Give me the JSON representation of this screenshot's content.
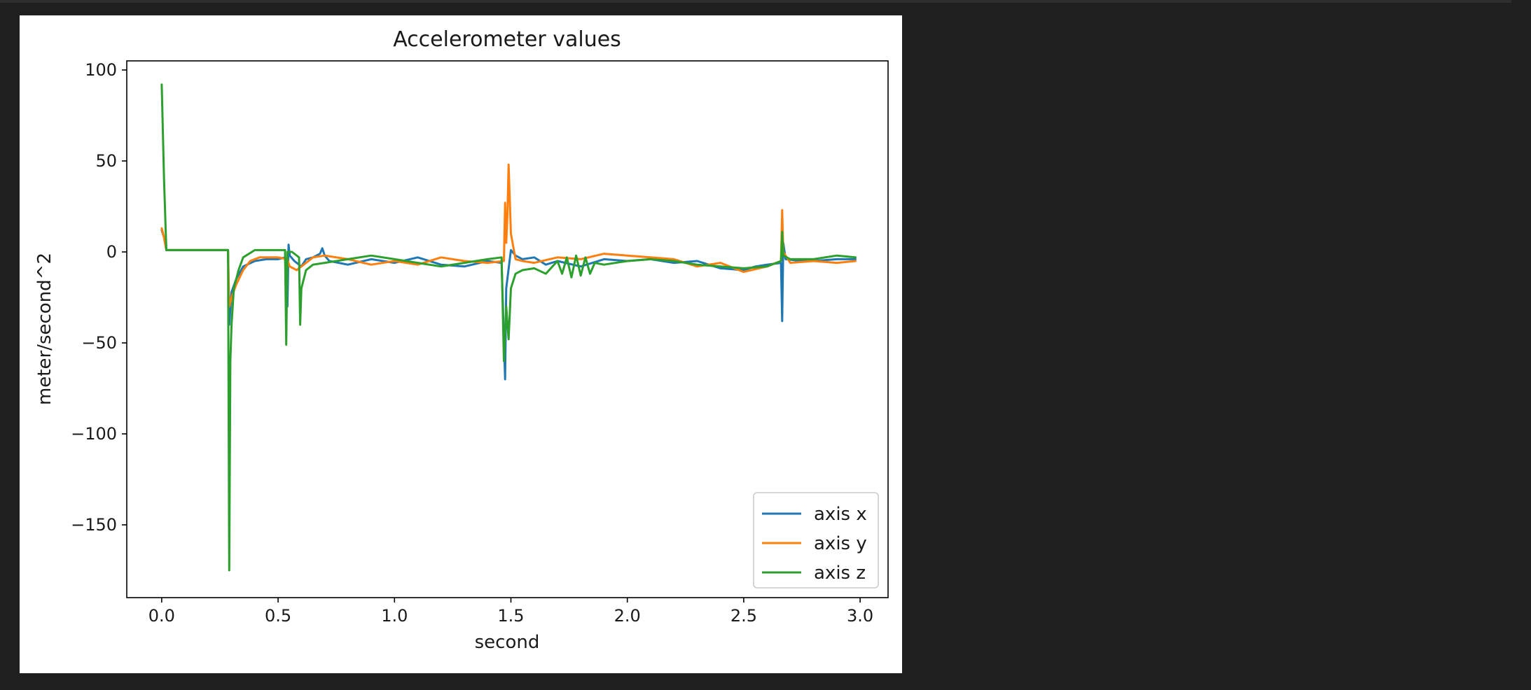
{
  "chart_data": {
    "type": "line",
    "title": "Accelerometer values",
    "xlabel": "second",
    "ylabel": "meter/second^2",
    "xlim": [
      -0.15,
      3.12
    ],
    "ylim": [
      -190,
      105
    ],
    "xticks": [
      0.0,
      0.5,
      1.0,
      1.5,
      2.0,
      2.5,
      3.0
    ],
    "xtick_labels": [
      "0.0",
      "0.5",
      "1.0",
      "1.5",
      "2.0",
      "2.5",
      "3.0"
    ],
    "yticks": [
      100,
      50,
      0,
      -50,
      -100,
      -150
    ],
    "ytick_labels": [
      "100",
      "50",
      "0",
      "−50",
      "−100",
      "−150"
    ],
    "grid": false,
    "legend": "lower-right",
    "series": [
      {
        "name": "axis x",
        "color": "#1f77b4",
        "points": [
          [
            0.0,
            12
          ],
          [
            0.01,
            8
          ],
          [
            0.02,
            1
          ],
          [
            0.1,
            1
          ],
          [
            0.2,
            1
          ],
          [
            0.285,
            1
          ],
          [
            0.29,
            -40
          ],
          [
            0.3,
            -22
          ],
          [
            0.32,
            -15
          ],
          [
            0.35,
            -8
          ],
          [
            0.4,
            -5
          ],
          [
            0.45,
            -4
          ],
          [
            0.5,
            -4
          ],
          [
            0.53,
            -3
          ],
          [
            0.54,
            -30
          ],
          [
            0.545,
            4
          ],
          [
            0.55,
            -2
          ],
          [
            0.57,
            -5
          ],
          [
            0.6,
            -8
          ],
          [
            0.62,
            -4
          ],
          [
            0.65,
            -3
          ],
          [
            0.68,
            -1
          ],
          [
            0.69,
            2
          ],
          [
            0.7,
            -2
          ],
          [
            0.72,
            -5
          ],
          [
            0.8,
            -7
          ],
          [
            0.9,
            -4
          ],
          [
            1.0,
            -6
          ],
          [
            1.1,
            -3
          ],
          [
            1.2,
            -7
          ],
          [
            1.3,
            -8
          ],
          [
            1.4,
            -5
          ],
          [
            1.46,
            -6
          ],
          [
            1.475,
            -70
          ],
          [
            1.48,
            -20
          ],
          [
            1.5,
            1
          ],
          [
            1.52,
            -2
          ],
          [
            1.55,
            -4
          ],
          [
            1.6,
            -3
          ],
          [
            1.65,
            -7
          ],
          [
            1.7,
            -5
          ],
          [
            1.8,
            -8
          ],
          [
            1.9,
            -4
          ],
          [
            2.0,
            -5
          ],
          [
            2.1,
            -4
          ],
          [
            2.2,
            -6
          ],
          [
            2.3,
            -5
          ],
          [
            2.4,
            -9
          ],
          [
            2.5,
            -10
          ],
          [
            2.55,
            -8
          ],
          [
            2.6,
            -7
          ],
          [
            2.66,
            -6
          ],
          [
            2.665,
            -38
          ],
          [
            2.67,
            5
          ],
          [
            2.68,
            -4
          ],
          [
            2.75,
            -5
          ],
          [
            2.8,
            -5
          ],
          [
            2.9,
            -4
          ],
          [
            2.98,
            -4
          ]
        ]
      },
      {
        "name": "axis y",
        "color": "#ff7f0e",
        "points": [
          [
            0.0,
            13
          ],
          [
            0.01,
            8
          ],
          [
            0.02,
            1
          ],
          [
            0.1,
            1
          ],
          [
            0.2,
            1
          ],
          [
            0.285,
            1
          ],
          [
            0.29,
            -30
          ],
          [
            0.3,
            -25
          ],
          [
            0.32,
            -18
          ],
          [
            0.35,
            -10
          ],
          [
            0.38,
            -5
          ],
          [
            0.42,
            -3
          ],
          [
            0.5,
            -3
          ],
          [
            0.54,
            -4
          ],
          [
            0.55,
            -8
          ],
          [
            0.58,
            -10
          ],
          [
            0.6,
            -8
          ],
          [
            0.65,
            -3
          ],
          [
            0.7,
            -2
          ],
          [
            0.8,
            -4
          ],
          [
            0.9,
            -7
          ],
          [
            1.0,
            -5
          ],
          [
            1.1,
            -7
          ],
          [
            1.2,
            -3
          ],
          [
            1.3,
            -5
          ],
          [
            1.4,
            -6
          ],
          [
            1.47,
            -5
          ],
          [
            1.475,
            27
          ],
          [
            1.48,
            5
          ],
          [
            1.485,
            20
          ],
          [
            1.49,
            48
          ],
          [
            1.5,
            10
          ],
          [
            1.52,
            -4
          ],
          [
            1.55,
            -5
          ],
          [
            1.6,
            -6
          ],
          [
            1.7,
            -3
          ],
          [
            1.8,
            -4
          ],
          [
            1.9,
            -1
          ],
          [
            2.0,
            -2
          ],
          [
            2.1,
            -3
          ],
          [
            2.2,
            -4
          ],
          [
            2.3,
            -8
          ],
          [
            2.4,
            -6
          ],
          [
            2.5,
            -11
          ],
          [
            2.6,
            -8
          ],
          [
            2.66,
            -5
          ],
          [
            2.665,
            23
          ],
          [
            2.67,
            0
          ],
          [
            2.7,
            -6
          ],
          [
            2.8,
            -5
          ],
          [
            2.9,
            -6
          ],
          [
            2.98,
            -5
          ]
        ]
      },
      {
        "name": "axis z",
        "color": "#2ca02c",
        "points": [
          [
            0.0,
            92
          ],
          [
            0.01,
            40
          ],
          [
            0.02,
            1
          ],
          [
            0.1,
            1
          ],
          [
            0.2,
            1
          ],
          [
            0.285,
            1
          ],
          [
            0.29,
            -175
          ],
          [
            0.295,
            -60
          ],
          [
            0.3,
            -40
          ],
          [
            0.31,
            -20
          ],
          [
            0.33,
            -10
          ],
          [
            0.35,
            -3
          ],
          [
            0.4,
            1
          ],
          [
            0.5,
            1
          ],
          [
            0.53,
            1
          ],
          [
            0.535,
            -51
          ],
          [
            0.54,
            0
          ],
          [
            0.56,
            0
          ],
          [
            0.59,
            -3
          ],
          [
            0.595,
            -40
          ],
          [
            0.6,
            -20
          ],
          [
            0.62,
            -10
          ],
          [
            0.65,
            -7
          ],
          [
            0.7,
            -6
          ],
          [
            0.8,
            -4
          ],
          [
            0.9,
            -2
          ],
          [
            1.0,
            -4
          ],
          [
            1.1,
            -6
          ],
          [
            1.2,
            -8
          ],
          [
            1.3,
            -6
          ],
          [
            1.4,
            -4
          ],
          [
            1.46,
            -3
          ],
          [
            1.47,
            -60
          ],
          [
            1.48,
            -30
          ],
          [
            1.49,
            -48
          ],
          [
            1.5,
            -20
          ],
          [
            1.52,
            -12
          ],
          [
            1.55,
            -10
          ],
          [
            1.6,
            -9
          ],
          [
            1.65,
            -12
          ],
          [
            1.7,
            -5
          ],
          [
            1.72,
            -12
          ],
          [
            1.74,
            -3
          ],
          [
            1.76,
            -14
          ],
          [
            1.78,
            -2
          ],
          [
            1.8,
            -13
          ],
          [
            1.82,
            -3
          ],
          [
            1.84,
            -12
          ],
          [
            1.86,
            -6
          ],
          [
            1.9,
            -7
          ],
          [
            2.0,
            -5
          ],
          [
            2.1,
            -4
          ],
          [
            2.2,
            -5
          ],
          [
            2.3,
            -7
          ],
          [
            2.4,
            -8
          ],
          [
            2.5,
            -9
          ],
          [
            2.6,
            -8
          ],
          [
            2.66,
            -5
          ],
          [
            2.665,
            11
          ],
          [
            2.67,
            -2
          ],
          [
            2.7,
            -4
          ],
          [
            2.8,
            -4
          ],
          [
            2.9,
            -2
          ],
          [
            2.98,
            -3
          ]
        ]
      }
    ]
  }
}
